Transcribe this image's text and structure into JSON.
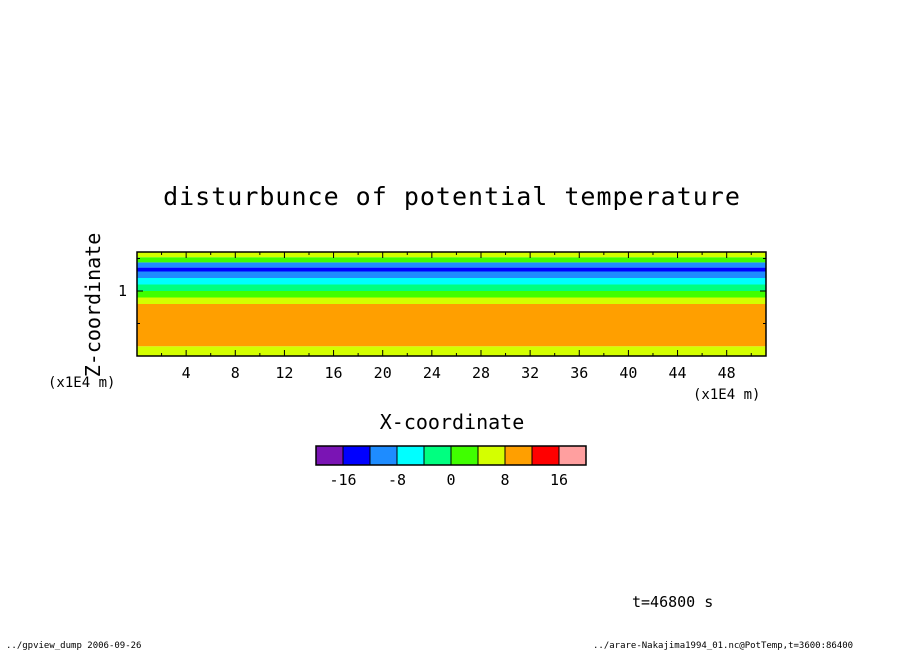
{
  "chart_data": {
    "type": "heatmap",
    "title": "disturbunce of potential temperature",
    "xlabel": "X-coordinate",
    "ylabel": "Z-coordinate",
    "x_unit_label": "(x1E4 m)",
    "y_unit_label": "(x1E4 m)",
    "xlim": [
      0,
      51.2
    ],
    "ylim": [
      0,
      1.6
    ],
    "x_ticks": [
      "4",
      "8",
      "12",
      "16",
      "20",
      "24",
      "28",
      "32",
      "36",
      "40",
      "44",
      "48"
    ],
    "x_tick_values": [
      4,
      8,
      12,
      16,
      20,
      24,
      28,
      32,
      36,
      40,
      44,
      48
    ],
    "y_ticks": [
      "1"
    ],
    "y_tick_values": [
      1
    ],
    "colorbar": {
      "levels": [
        -20,
        -16,
        -12,
        -8,
        -4,
        0,
        4,
        8,
        12,
        16,
        20
      ],
      "labels": [
        "-16",
        "-8",
        "0",
        "8",
        "16"
      ],
      "label_values": [
        -16,
        -8,
        0,
        8,
        16
      ],
      "colors": [
        "#7a14b4",
        "#0000ff",
        "#1e8cff",
        "#00ffff",
        "#00ff80",
        "#40ff00",
        "#d4ff00",
        "#ff9f00",
        "#ff0000",
        "#ff9f9f"
      ]
    },
    "bands": [
      {
        "z_from": 0.0,
        "z_to": 0.15,
        "value": 6
      },
      {
        "z_from": 0.15,
        "z_to": 0.8,
        "value": 10
      },
      {
        "z_from": 0.8,
        "z_to": 0.9,
        "value": 6
      },
      {
        "z_from": 0.9,
        "z_to": 1.0,
        "value": 2
      },
      {
        "z_from": 1.0,
        "z_to": 1.1,
        "value": -2
      },
      {
        "z_from": 1.1,
        "z_to": 1.2,
        "value": -6
      },
      {
        "z_from": 1.2,
        "z_to": 1.3,
        "value": -10
      },
      {
        "z_from": 1.3,
        "z_to": 1.36,
        "value": -14
      },
      {
        "z_from": 1.36,
        "z_to": 1.44,
        "value": -10
      },
      {
        "z_from": 1.44,
        "z_to": 1.52,
        "value": 2
      },
      {
        "z_from": 1.52,
        "z_to": 1.6,
        "value": 6
      }
    ],
    "grid": false
  },
  "annotations": {
    "time": "t=46800 s",
    "footer_left": "../gpview_dump  2006-09-26",
    "footer_right": "../arare-Nakajima1994_01.nc@PotTemp,t=3600:86400"
  }
}
